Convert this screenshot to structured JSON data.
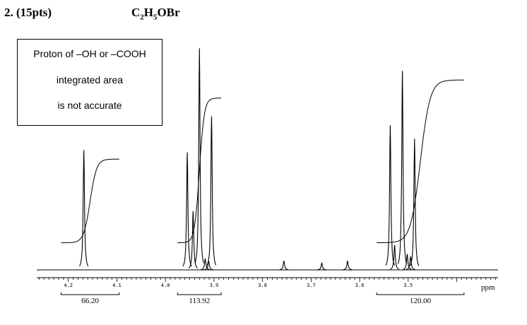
{
  "header": {
    "number": "2. (15pts)",
    "formula_parts": [
      "C",
      "2",
      "H",
      "5",
      "OBr"
    ]
  },
  "note_box": {
    "lines": [
      "Proton of –OH or –COOH",
      "integrated area",
      "is not accurate"
    ]
  },
  "chart_data": {
    "type": "line",
    "title": "",
    "xlabel": "ppm",
    "ylabel": "",
    "xlim": [
      4.265,
      3.315
    ],
    "x_reversed": true,
    "ylim": [
      0,
      1
    ],
    "grid": false,
    "tick_labels": [
      "4.2",
      "4.1",
      "4.0",
      "3.9",
      "3.8",
      "3.7",
      "3.6",
      "3.5"
    ],
    "tick_values": [
      4.2,
      4.1,
      4.0,
      3.9,
      3.8,
      3.7,
      3.6,
      3.5
    ],
    "peaks": [
      {
        "shift": 4.168,
        "height": 0.53
      },
      {
        "shift": 3.955,
        "height": 0.52
      },
      {
        "shift": 3.943,
        "height": 0.26
      },
      {
        "shift": 3.93,
        "height": 0.98
      },
      {
        "shift": 3.918,
        "height": 0.05
      },
      {
        "shift": 3.911,
        "height": 0.04
      },
      {
        "shift": 3.905,
        "height": 0.68
      },
      {
        "shift": 3.756,
        "height": 0.04
      },
      {
        "shift": 3.678,
        "height": 0.03
      },
      {
        "shift": 3.625,
        "height": 0.04
      },
      {
        "shift": 3.537,
        "height": 0.64
      },
      {
        "shift": 3.528,
        "height": 0.11
      },
      {
        "shift": 3.512,
        "height": 0.88
      },
      {
        "shift": 3.502,
        "height": 0.07
      },
      {
        "shift": 3.495,
        "height": 0.06
      },
      {
        "shift": 3.487,
        "height": 0.58
      }
    ],
    "integrals": [
      {
        "label": "66.20",
        "from": 4.215,
        "to": 4.095,
        "start": 0.12,
        "end": 0.49
      },
      {
        "label": "113.92",
        "from": 3.975,
        "to": 3.885,
        "start": 0.12,
        "end": 0.76
      },
      {
        "label": "120.00",
        "from": 3.565,
        "to": 3.385,
        "start": 0.12,
        "end": 0.84
      }
    ]
  }
}
